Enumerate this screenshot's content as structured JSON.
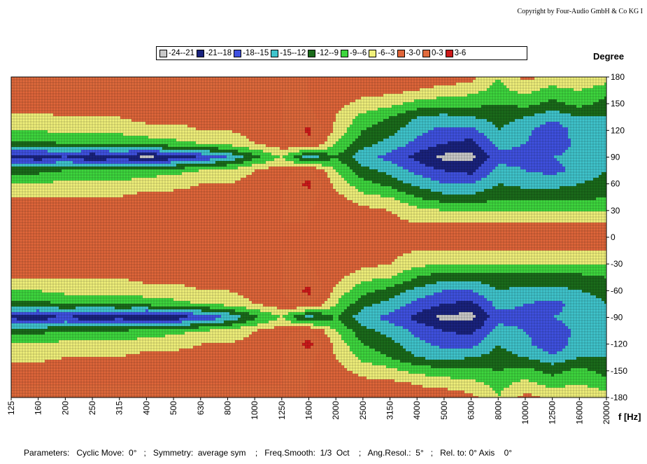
{
  "copyright": "Copyright by Four-Audio GmbH & Co KG  I",
  "parameters_text": "Parameters:   Cyclic Move:  0°   ;   Symmetry:  average sym    ;   Freq.Smooth:  1/3  Oct    ;   Ang.Resol.:  5°   ;   Rel. to: 0° Axis    0°",
  "colors": {
    "-24--21": "#c8c8c8",
    "-21--18": "#1a237e",
    "-18--15": "#3f51e0",
    "-15--12": "#3fc4cc",
    "-12--9": "#1b6b1b",
    "-9--6": "#3ed63e",
    "-6--3": "#f0f07a",
    "-3-0": "#e0663a",
    "0-3": "#e06a3c",
    "3-6": "#cc1a1a"
  },
  "chart_data": {
    "type": "heatmap",
    "ylabel": "Degree",
    "xlabel": "f [Hz]",
    "legend": [
      "-24--21",
      "-21--18",
      "-18--15",
      "-15--12",
      "-12--9",
      "-9--6",
      "-6--3",
      "-3-0",
      "0-3",
      "3-6"
    ],
    "legend_position": "top",
    "x_ticks": [
      "125",
      "160",
      "200",
      "250",
      "315",
      "400",
      "500",
      "630",
      "800",
      "1000",
      "1250",
      "1600",
      "2000",
      "2500",
      "3150",
      "4000",
      "5000",
      "6300",
      "8000",
      "10000",
      "12500",
      "16000",
      "20000"
    ],
    "y_ticks": [
      "180",
      "150",
      "120",
      "90",
      "60",
      "30",
      "0",
      "-30",
      "-60",
      "-90",
      "-120",
      "-150",
      "-180"
    ],
    "ylim": [
      -180,
      180
    ],
    "x_scale": "log",
    "grid": true,
    "angles": [
      180,
      165,
      150,
      135,
      120,
      105,
      90,
      75,
      60,
      45,
      30,
      15,
      0,
      -15,
      -30,
      -45,
      -60,
      -75,
      -90,
      -105,
      -120,
      -135,
      -150,
      -165,
      -180
    ],
    "levels_db": [
      [
        0,
        0,
        0,
        0,
        0,
        0,
        0,
        0,
        0,
        0,
        0,
        0,
        -1,
        -1,
        -1,
        -2,
        -1,
        -2,
        -6,
        -2,
        -4,
        -3,
        -4
      ],
      [
        0,
        0,
        0,
        0,
        0,
        0,
        0,
        0,
        0,
        0,
        0,
        0,
        -1,
        -2,
        -2,
        -3,
        -4,
        -5,
        -7,
        -5,
        -7,
        -6,
        -8
      ],
      [
        -1,
        -1,
        -1,
        -1,
        -1,
        -1,
        -1,
        -1,
        -1,
        -1,
        0,
        0,
        -2,
        -4,
        -5,
        -7,
        -8,
        -8,
        -9,
        -8,
        -10,
        -8,
        -10
      ],
      [
        -4,
        -4,
        -3,
        -3,
        -3,
        -2,
        -2,
        -2,
        -2,
        -1,
        0,
        1,
        -3,
        -7,
        -9,
        -12,
        -13,
        -12,
        -11,
        -12,
        -14,
        -12,
        -12
      ],
      [
        -6,
        -6,
        -5,
        -5,
        -5,
        -4,
        -4,
        -3,
        -3,
        -2,
        0,
        4,
        -4,
        -9,
        -11,
        -14,
        -16,
        -16,
        -12,
        -14,
        -18,
        -13,
        -12
      ],
      [
        -10,
        -10,
        -9,
        -9,
        -9,
        -8,
        -7,
        -6,
        -5,
        -3,
        -1,
        1,
        -6,
        -11,
        -13,
        -16,
        -18,
        -19,
        -14,
        -15,
        -17,
        -14,
        -12
      ],
      [
        -19,
        -20,
        -18,
        -21,
        -19,
        -22,
        -20,
        -18,
        -15,
        -10,
        -6,
        -14,
        -9,
        -14,
        -16,
        -19,
        -22,
        -22,
        -16,
        -16,
        -15,
        -14,
        -12
      ],
      [
        -10,
        -10,
        -9,
        -9,
        -9,
        -8,
        -7,
        -6,
        -5,
        -3,
        -1,
        1,
        -6,
        -11,
        -13,
        -16,
        -18,
        -19,
        -14,
        -15,
        -16,
        -14,
        -12
      ],
      [
        -6,
        -6,
        -5,
        -5,
        -5,
        -4,
        -4,
        -3,
        -3,
        -2,
        0,
        4,
        -4,
        -8,
        -10,
        -13,
        -15,
        -15,
        -12,
        -13,
        -13,
        -12,
        -11
      ],
      [
        -3,
        -3,
        -3,
        -3,
        -3,
        -2,
        -2,
        -2,
        -2,
        -1,
        0,
        1,
        -2,
        -5,
        -6,
        -9,
        -11,
        -11,
        -10,
        -10,
        -10,
        -10,
        -9
      ],
      [
        -1,
        -1,
        -1,
        -1,
        -1,
        -1,
        -1,
        -1,
        -1,
        -1,
        0,
        0,
        -1,
        -2,
        -3,
        -5,
        -6,
        -6,
        -6,
        -6,
        -6,
        -6,
        -6
      ],
      [
        0,
        0,
        0,
        0,
        0,
        0,
        0,
        0,
        0,
        0,
        0,
        0,
        -1,
        -1,
        -2,
        -3,
        -3,
        -3,
        -3,
        -3,
        -3,
        -3,
        -3
      ],
      [
        -1,
        -1,
        -1,
        -1,
        -1,
        -1,
        -1,
        -1,
        -1,
        -1,
        -1,
        -1,
        -1,
        -1,
        -1,
        -2,
        -2,
        -2,
        -2,
        -2,
        -2,
        -2,
        -2
      ],
      [
        0,
        0,
        0,
        0,
        0,
        0,
        0,
        0,
        0,
        0,
        0,
        0,
        -1,
        -1,
        -2,
        -3,
        -3,
        -3,
        -3,
        -3,
        -3,
        -3,
        -3
      ],
      [
        -1,
        -1,
        -1,
        -1,
        -1,
        -1,
        -1,
        -1,
        -1,
        -1,
        0,
        0,
        -1,
        -2,
        -3,
        -5,
        -6,
        -6,
        -6,
        -6,
        -6,
        -6,
        -6
      ],
      [
        -3,
        -3,
        -3,
        -3,
        -3,
        -2,
        -2,
        -2,
        -2,
        -1,
        0,
        1,
        -2,
        -5,
        -6,
        -9,
        -11,
        -11,
        -10,
        -10,
        -10,
        -10,
        -9
      ],
      [
        -6,
        -6,
        -5,
        -5,
        -5,
        -4,
        -4,
        -3,
        -3,
        -2,
        0,
        4,
        -4,
        -8,
        -10,
        -13,
        -15,
        -15,
        -12,
        -13,
        -13,
        -12,
        -11
      ],
      [
        -10,
        -10,
        -9,
        -9,
        -9,
        -8,
        -7,
        -6,
        -5,
        -3,
        -1,
        1,
        -6,
        -11,
        -13,
        -16,
        -18,
        -19,
        -14,
        -15,
        -16,
        -14,
        -12
      ],
      [
        -19,
        -20,
        -18,
        -21,
        -19,
        -22,
        -20,
        -18,
        -15,
        -10,
        -6,
        -14,
        -9,
        -14,
        -16,
        -19,
        -22,
        -22,
        -16,
        -16,
        -15,
        -14,
        -12
      ],
      [
        -10,
        -10,
        -9,
        -9,
        -9,
        -8,
        -7,
        -6,
        -5,
        -3,
        -1,
        1,
        -6,
        -11,
        -13,
        -16,
        -18,
        -19,
        -14,
        -15,
        -17,
        -14,
        -12
      ],
      [
        -6,
        -6,
        -5,
        -5,
        -5,
        -4,
        -4,
        -3,
        -3,
        -2,
        0,
        4,
        -4,
        -9,
        -11,
        -14,
        -16,
        -16,
        -12,
        -14,
        -18,
        -13,
        -12
      ],
      [
        -4,
        -4,
        -3,
        -3,
        -3,
        -2,
        -2,
        -2,
        -2,
        -1,
        0,
        1,
        -3,
        -7,
        -9,
        -12,
        -13,
        -12,
        -11,
        -12,
        -14,
        -12,
        -12
      ],
      [
        -1,
        -1,
        -1,
        -1,
        -1,
        -1,
        -1,
        -1,
        -1,
        -1,
        0,
        0,
        -2,
        -4,
        -5,
        -7,
        -8,
        -8,
        -9,
        -8,
        -10,
        -8,
        -10
      ],
      [
        0,
        0,
        0,
        0,
        0,
        0,
        0,
        0,
        0,
        0,
        0,
        0,
        -1,
        -2,
        -2,
        -3,
        -4,
        -5,
        -7,
        -5,
        -7,
        -6,
        -8
      ],
      [
        0,
        0,
        0,
        0,
        0,
        0,
        0,
        0,
        0,
        0,
        0,
        0,
        -1,
        -1,
        -1,
        -2,
        -1,
        -2,
        -6,
        -2,
        -4,
        -3,
        -4
      ]
    ]
  }
}
